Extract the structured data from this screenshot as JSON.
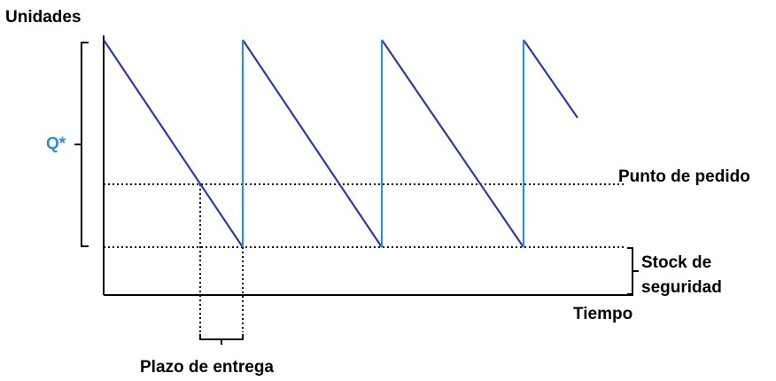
{
  "diagram": {
    "y_axis_label": "Unidades",
    "x_axis_label": "Tiempo",
    "q_label": "Q*",
    "reorder_point_label": "Punto de pedido",
    "safety_stock_label_line1": "Stock de",
    "safety_stock_label_line2": "seguridad",
    "lead_time_label": "Plazo de entrega"
  },
  "colors": {
    "depletion_line": "#2e3a9e",
    "replenishment_line": "#2a8fd6",
    "q_label": "#2a8fd6",
    "axis": "#000000"
  }
}
